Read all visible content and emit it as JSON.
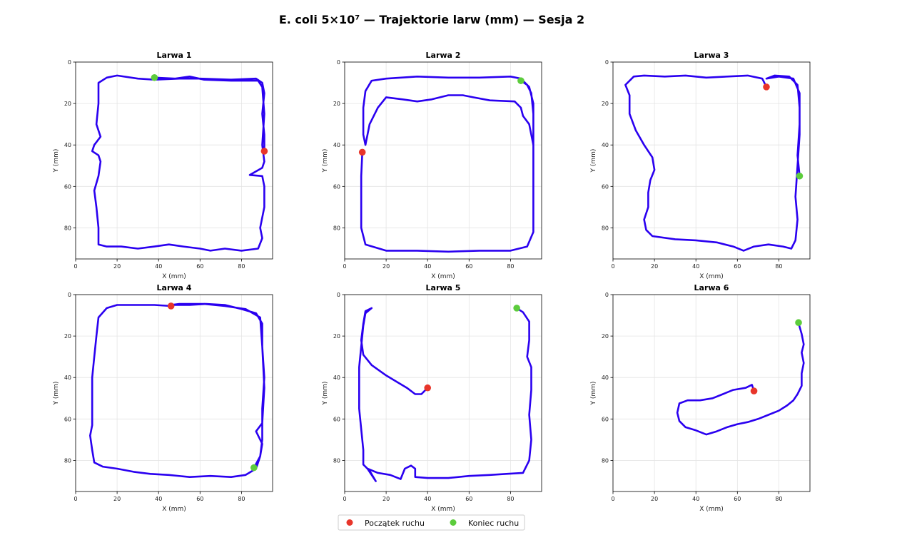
{
  "title": "E. coli 5×10⁷ — Trajektorie larw (mm) — Sesja 2",
  "colors": {
    "path": "#2a00f0",
    "start": "#e8352a",
    "end": "#5ccc3c",
    "grid": "#e4e4e4"
  },
  "legend": {
    "placement": "bottom-center",
    "start_label": "Początek ruchu",
    "end_label": "Koniec ruchu"
  },
  "chart_data": [
    {
      "type": "line",
      "title": "Larwa 1",
      "xlabel": "X (mm)",
      "ylabel": "Y (mm)",
      "xlim": [
        0,
        95
      ],
      "ylim": [
        95,
        0
      ],
      "xticks": [
        0,
        20,
        40,
        60,
        80
      ],
      "yticks": [
        0,
        20,
        40,
        60,
        80
      ],
      "grid": true,
      "start": [
        91,
        43
      ],
      "end": [
        38,
        7.5
      ],
      "path": [
        [
          91,
          43
        ],
        [
          91,
          35
        ],
        [
          90,
          25
        ],
        [
          91,
          15
        ],
        [
          90,
          10
        ],
        [
          87,
          8
        ],
        [
          75,
          8.5
        ],
        [
          60,
          8
        ],
        [
          50,
          8
        ],
        [
          38,
          8.5
        ],
        [
          30,
          8
        ],
        [
          20,
          6.5
        ],
        [
          15,
          7.5
        ],
        [
          11,
          10
        ],
        [
          11,
          20
        ],
        [
          10,
          30
        ],
        [
          12,
          36
        ],
        [
          9,
          40
        ],
        [
          8,
          43
        ],
        [
          11,
          45
        ],
        [
          12,
          48
        ],
        [
          11,
          55
        ],
        [
          9,
          62
        ],
        [
          10,
          70
        ],
        [
          11,
          80
        ],
        [
          11,
          88
        ],
        [
          15,
          89
        ],
        [
          22,
          89
        ],
        [
          30,
          90
        ],
        [
          38,
          89
        ],
        [
          45,
          88
        ],
        [
          52,
          89
        ],
        [
          60,
          90
        ],
        [
          65,
          91
        ],
        [
          72,
          90
        ],
        [
          80,
          91
        ],
        [
          88,
          90
        ],
        [
          90,
          85
        ],
        [
          89,
          80
        ],
        [
          91,
          70
        ],
        [
          91,
          60
        ],
        [
          90,
          55
        ],
        [
          84,
          54.5
        ],
        [
          90,
          51
        ],
        [
          91,
          48
        ],
        [
          90,
          40
        ],
        [
          91,
          25
        ],
        [
          90,
          12
        ],
        [
          88,
          9
        ],
        [
          75,
          9
        ],
        [
          62,
          8.5
        ],
        [
          55,
          7
        ],
        [
          48,
          8
        ],
        [
          38,
          7.5
        ]
      ]
    },
    {
      "type": "line",
      "title": "Larwa 2",
      "xlabel": "X (mm)",
      "ylabel": "Y (mm)",
      "xlim": [
        0,
        95
      ],
      "ylim": [
        95,
        0
      ],
      "xticks": [
        0,
        20,
        40,
        60,
        80
      ],
      "yticks": [
        0,
        20,
        40,
        60,
        80
      ],
      "grid": true,
      "start": [
        8.5,
        43.5
      ],
      "end": [
        85,
        9
      ],
      "path": [
        [
          8.5,
          43.5
        ],
        [
          8,
          55
        ],
        [
          8,
          70
        ],
        [
          8,
          80
        ],
        [
          10,
          88
        ],
        [
          20,
          91
        ],
        [
          35,
          91
        ],
        [
          50,
          91.5
        ],
        [
          65,
          91
        ],
        [
          80,
          91
        ],
        [
          88,
          89
        ],
        [
          91,
          82
        ],
        [
          91,
          65
        ],
        [
          91,
          50
        ],
        [
          91,
          35
        ],
        [
          91,
          20
        ],
        [
          89,
          12
        ],
        [
          85,
          8
        ],
        [
          80,
          7
        ],
        [
          65,
          7.5
        ],
        [
          50,
          7.5
        ],
        [
          35,
          7
        ],
        [
          20,
          8
        ],
        [
          13,
          9
        ],
        [
          10,
          14
        ],
        [
          9,
          22
        ],
        [
          9,
          35
        ],
        [
          10,
          40
        ],
        [
          12,
          30
        ],
        [
          16,
          22
        ],
        [
          20,
          17
        ],
        [
          28,
          18
        ],
        [
          35,
          19
        ],
        [
          42,
          18
        ],
        [
          50,
          16
        ],
        [
          57,
          16
        ],
        [
          62,
          17
        ],
        [
          70,
          18.5
        ],
        [
          82,
          19
        ],
        [
          85,
          22
        ],
        [
          86,
          26
        ],
        [
          89,
          30
        ],
        [
          91,
          40
        ],
        [
          91,
          25
        ],
        [
          90,
          15
        ],
        [
          88,
          11
        ],
        [
          85,
          9
        ]
      ]
    },
    {
      "type": "line",
      "title": "Larwa 3",
      "xlabel": "X (mm)",
      "ylabel": "Y (mm)",
      "xlim": [
        0,
        95
      ],
      "ylim": [
        95,
        0
      ],
      "xticks": [
        0,
        20,
        40,
        60,
        80
      ],
      "yticks": [
        0,
        20,
        40,
        60,
        80
      ],
      "grid": true,
      "start": [
        74,
        12
      ],
      "end": [
        90,
        55
      ],
      "path": [
        [
          74,
          12
        ],
        [
          72,
          8
        ],
        [
          65,
          6.5
        ],
        [
          55,
          7
        ],
        [
          45,
          7.5
        ],
        [
          35,
          6.5
        ],
        [
          25,
          7
        ],
        [
          15,
          6.5
        ],
        [
          10,
          7
        ],
        [
          6,
          11
        ],
        [
          8,
          16
        ],
        [
          8,
          25
        ],
        [
          11,
          33
        ],
        [
          15,
          40
        ],
        [
          19,
          46
        ],
        [
          20,
          52
        ],
        [
          18,
          57
        ],
        [
          17,
          63
        ],
        [
          17,
          70
        ],
        [
          15,
          76
        ],
        [
          16,
          81
        ],
        [
          19,
          84
        ],
        [
          30,
          85.5
        ],
        [
          40,
          86
        ],
        [
          50,
          87
        ],
        [
          58,
          89
        ],
        [
          63,
          91
        ],
        [
          68,
          89
        ],
        [
          75,
          88
        ],
        [
          82,
          89
        ],
        [
          86,
          90
        ],
        [
          88,
          86
        ],
        [
          89,
          76
        ],
        [
          88,
          65
        ],
        [
          89,
          50
        ],
        [
          90,
          35
        ],
        [
          90,
          22
        ],
        [
          89,
          11
        ],
        [
          85,
          7
        ],
        [
          78,
          6.5
        ],
        [
          74,
          8
        ],
        [
          80,
          7
        ],
        [
          87,
          8
        ],
        [
          90,
          15
        ],
        [
          90,
          30
        ],
        [
          89,
          45
        ],
        [
          90,
          55
        ]
      ]
    },
    {
      "type": "line",
      "title": "Larwa 4",
      "xlabel": "X (mm)",
      "ylabel": "Y (mm)",
      "xlim": [
        0,
        95
      ],
      "ylim": [
        95,
        0
      ],
      "xticks": [
        0,
        20,
        40,
        60,
        80
      ],
      "yticks": [
        0,
        20,
        40,
        60,
        80
      ],
      "grid": true,
      "start": [
        46,
        5.5
      ],
      "end": [
        86,
        83.5
      ],
      "path": [
        [
          46,
          5.5
        ],
        [
          38,
          5
        ],
        [
          28,
          5
        ],
        [
          20,
          5
        ],
        [
          15,
          6.5
        ],
        [
          11,
          11
        ],
        [
          10,
          20
        ],
        [
          9,
          30
        ],
        [
          8,
          40
        ],
        [
          8,
          52
        ],
        [
          8,
          63
        ],
        [
          7,
          68
        ],
        [
          8,
          75
        ],
        [
          9,
          81
        ],
        [
          13,
          83
        ],
        [
          20,
          84
        ],
        [
          28,
          85.5
        ],
        [
          36,
          86.5
        ],
        [
          45,
          87
        ],
        [
          55,
          88
        ],
        [
          65,
          87.5
        ],
        [
          75,
          88
        ],
        [
          82,
          87
        ],
        [
          87,
          84
        ],
        [
          89,
          78
        ],
        [
          90,
          70
        ],
        [
          90,
          55
        ],
        [
          91,
          40
        ],
        [
          90,
          25
        ],
        [
          90,
          14
        ],
        [
          87,
          9
        ],
        [
          80,
          7
        ],
        [
          72,
          5
        ],
        [
          63,
          4.5
        ],
        [
          55,
          5
        ],
        [
          46,
          5
        ],
        [
          50,
          4.5
        ],
        [
          62,
          4.5
        ],
        [
          72,
          5.5
        ],
        [
          82,
          7
        ],
        [
          89,
          11
        ],
        [
          90,
          25
        ],
        [
          91,
          45
        ],
        [
          90,
          62
        ],
        [
          87,
          66
        ],
        [
          90,
          72
        ],
        [
          89,
          78
        ],
        [
          86,
          83.5
        ]
      ]
    },
    {
      "type": "line",
      "title": "Larwa 5",
      "xlabel": "X (mm)",
      "ylabel": "Y (mm)",
      "xlim": [
        0,
        95
      ],
      "ylim": [
        95,
        0
      ],
      "xticks": [
        0,
        20,
        40,
        60,
        80
      ],
      "yticks": [
        0,
        20,
        40,
        60,
        80
      ],
      "grid": true,
      "start": [
        40,
        45
      ],
      "end": [
        83,
        6.5
      ],
      "path": [
        [
          40,
          45
        ],
        [
          37,
          48
        ],
        [
          34,
          48
        ],
        [
          30,
          45
        ],
        [
          25,
          42
        ],
        [
          20,
          39
        ],
        [
          13,
          34
        ],
        [
          9,
          29
        ],
        [
          8,
          22
        ],
        [
          9,
          14
        ],
        [
          10,
          8
        ],
        [
          13,
          6.5
        ],
        [
          10,
          9
        ],
        [
          9,
          15
        ],
        [
          8,
          25
        ],
        [
          7,
          35
        ],
        [
          7,
          45
        ],
        [
          7,
          55
        ],
        [
          8,
          65
        ],
        [
          9,
          75
        ],
        [
          9,
          82
        ],
        [
          12,
          85
        ],
        [
          15,
          90
        ],
        [
          11,
          84
        ],
        [
          16,
          86
        ],
        [
          22,
          87
        ],
        [
          27,
          89
        ],
        [
          29,
          84
        ],
        [
          32,
          82.5
        ],
        [
          34,
          84
        ],
        [
          34,
          88
        ],
        [
          40,
          88.5
        ],
        [
          50,
          88.5
        ],
        [
          60,
          87.5
        ],
        [
          70,
          87
        ],
        [
          78,
          86.5
        ],
        [
          86,
          86
        ],
        [
          89,
          80
        ],
        [
          90,
          70
        ],
        [
          89,
          58
        ],
        [
          90,
          46
        ],
        [
          90,
          35
        ],
        [
          88,
          30
        ],
        [
          89,
          22
        ],
        [
          89,
          13
        ],
        [
          86,
          8.5
        ],
        [
          83,
          6.5
        ]
      ]
    },
    {
      "type": "line",
      "title": "Larwa 6",
      "xlabel": "X (mm)",
      "ylabel": "Y (mm)",
      "xlim": [
        0,
        95
      ],
      "ylim": [
        95,
        0
      ],
      "xticks": [
        0,
        20,
        40,
        60,
        80
      ],
      "yticks": [
        0,
        20,
        40,
        60,
        80
      ],
      "grid": true,
      "start": [
        68,
        46.5
      ],
      "end": [
        89.5,
        13.5
      ],
      "path": [
        [
          68,
          46.5
        ],
        [
          67,
          43.5
        ],
        [
          64,
          45
        ],
        [
          58,
          46
        ],
        [
          53,
          48
        ],
        [
          48,
          50
        ],
        [
          42,
          51
        ],
        [
          36,
          51
        ],
        [
          32,
          52.5
        ],
        [
          31,
          57
        ],
        [
          32,
          61
        ],
        [
          35,
          64
        ],
        [
          40,
          65.5
        ],
        [
          45,
          67.5
        ],
        [
          50,
          66
        ],
        [
          55,
          64
        ],
        [
          60,
          62.5
        ],
        [
          65,
          61.5
        ],
        [
          70,
          60
        ],
        [
          75,
          58
        ],
        [
          80,
          56
        ],
        [
          84,
          53.5
        ],
        [
          87,
          51
        ],
        [
          89,
          48
        ],
        [
          91,
          44
        ],
        [
          91,
          38
        ],
        [
          92,
          33
        ],
        [
          91,
          28
        ],
        [
          92,
          24
        ],
        [
          91,
          19
        ],
        [
          90,
          15.5
        ],
        [
          89.5,
          13.5
        ]
      ]
    }
  ]
}
